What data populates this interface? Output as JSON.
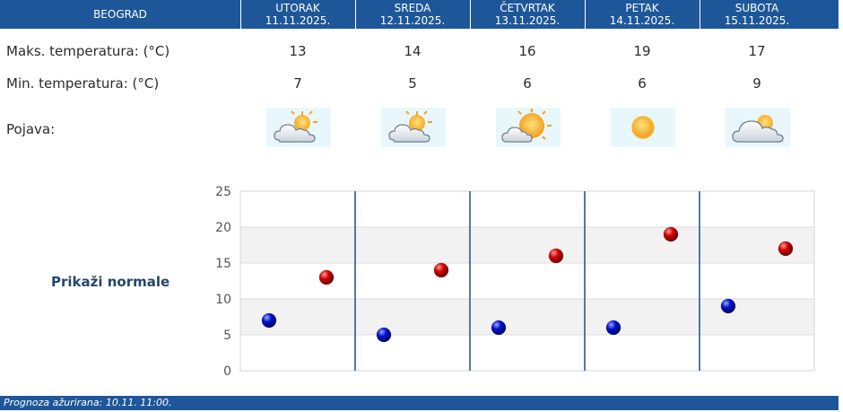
{
  "header": {
    "city": "BEOGRAD",
    "days": [
      {
        "name": "UTORAK",
        "date": "11.11.2025."
      },
      {
        "name": "SREDA",
        "date": "12.11.2025."
      },
      {
        "name": "ČETVRTAK",
        "date": "13.11.2025."
      },
      {
        "name": "PETAK",
        "date": "14.11.2025."
      },
      {
        "name": "SUBOTA",
        "date": "15.11.2025."
      }
    ]
  },
  "rows": {
    "max_label": "Maks. temperatura: (°C)",
    "min_label": "Min. temperatura: (°C)",
    "phenomenon_label": "Pojava:",
    "max_values": [
      "13",
      "14",
      "16",
      "19",
      "17"
    ],
    "min_values": [
      "7",
      "5",
      "6",
      "6",
      "9"
    ],
    "icons": [
      "sun-behind-cloud-icon",
      "sun-behind-cloud-icon",
      "cloud-with-large-sun-icon",
      "sun-icon",
      "cloud-with-sun-icon"
    ]
  },
  "normals_link": "Prikaži normale",
  "chart_data": {
    "type": "scatter",
    "y_ticks": [
      0,
      5,
      10,
      15,
      20,
      25
    ],
    "ylim": [
      0,
      25
    ],
    "grid": true,
    "series": [
      {
        "color": "#c00000",
        "values": [
          13,
          14,
          16,
          19,
          17
        ]
      },
      {
        "color": "#0000b0",
        "values": [
          7,
          5,
          6,
          6,
          9
        ]
      }
    ]
  },
  "footer": {
    "text": "Prognoza ažurirana:  10.11. 11:00."
  },
  "colors": {
    "header_bg": "#1e5799",
    "max_dot": "#c00000",
    "min_dot": "#0000b0"
  }
}
